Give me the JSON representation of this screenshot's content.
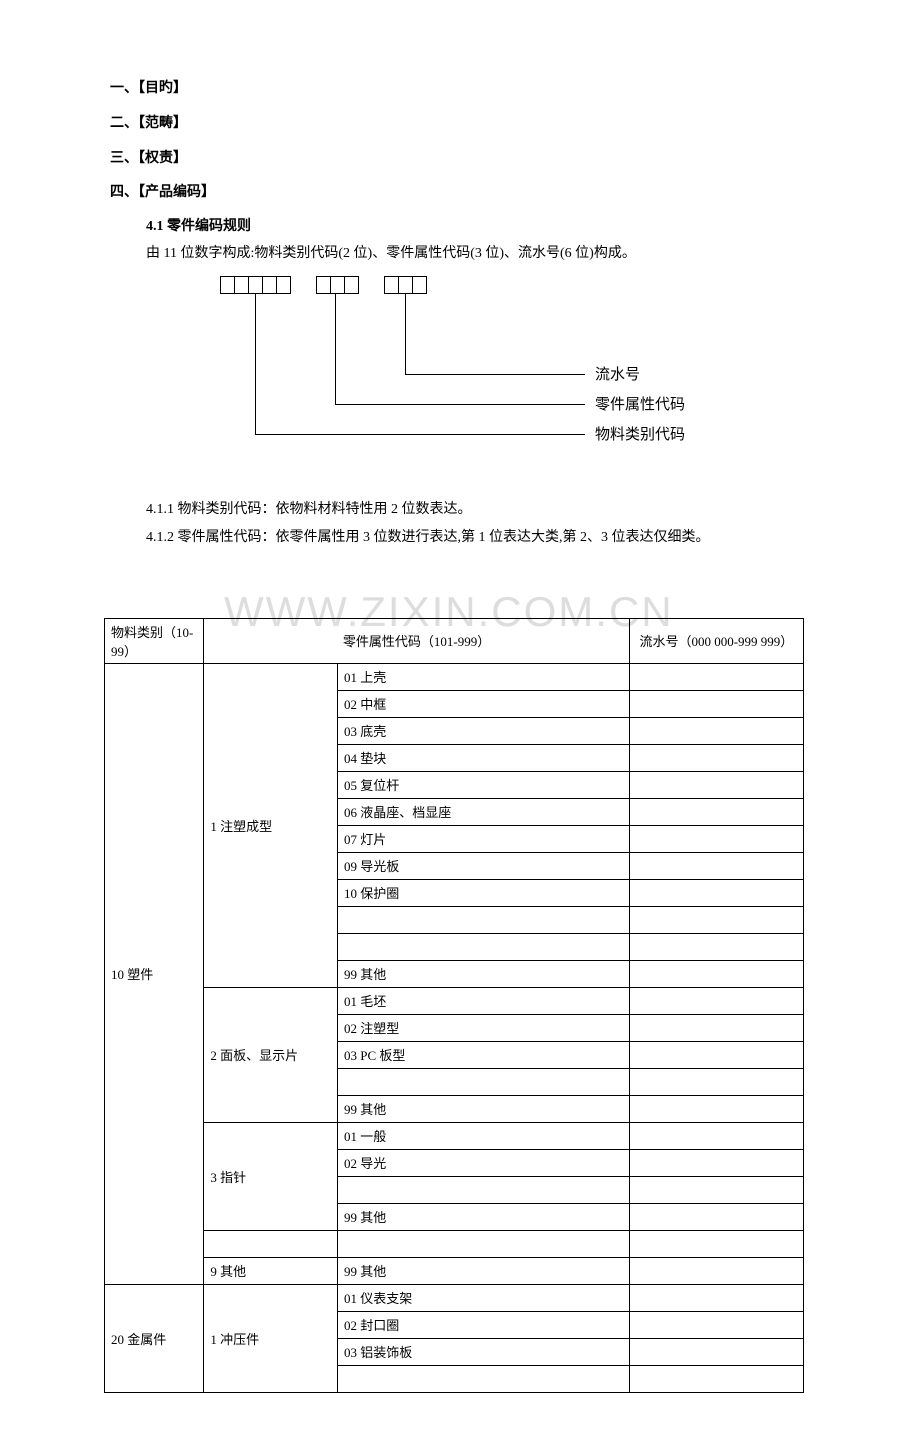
{
  "headings": {
    "h1": "一、【目旳】",
    "h2": "二、【范畴】",
    "h3": "三、【权责】",
    "h4": "四、【产品编码】"
  },
  "section41": {
    "title": "4.1 零件编码规则",
    "intro": "由 11 位数字构成:物料类别代码(2 位)、零件属性代码(3 位)、流水号(6 位)构成。",
    "label_serial": "流水号",
    "label_attr": "零件属性代码",
    "label_material": "物料类别代码",
    "p411": "4.1.1 物料类别代码：依物料材料特性用 2 位数表达。",
    "p412": "4.1.2 零件属性代码：依零件属性用 3 位数进行表达,第 1 位表达大类,第 2、3 位表达仅细类。"
  },
  "watermark": "WWW.ZIXIN.COM.CN",
  "table": {
    "header": {
      "colA": "物料类别（10-99）",
      "colBC": "零件属性代码（101-999）",
      "colD": "流水号（000 000-999 999）"
    },
    "groups": [
      {
        "material": "10 塑件",
        "subs": [
          {
            "name": "1 注塑成型",
            "items": [
              "01 上壳",
              "02 中框",
              "03 底壳",
              "04 垫块",
              "05 复位杆",
              "06 液晶座、档显座",
              "07 灯片",
              "09 导光板",
              "10 保护圈",
              "",
              "",
              "99 其他"
            ]
          },
          {
            "name": "2 面板、显示片",
            "items": [
              "01 毛坯",
              "02 注塑型",
              "03 PC 板型",
              "",
              "99 其他"
            ]
          },
          {
            "name": "3 指针",
            "items": [
              "01 一般",
              "02 导光",
              "",
              "99 其他"
            ]
          },
          {
            "name": "",
            "items": [
              ""
            ]
          },
          {
            "name": "9 其他",
            "items": [
              "99 其他"
            ]
          }
        ]
      },
      {
        "material": "20 金属件",
        "subs": [
          {
            "name": "1 冲压件",
            "items": [
              "01 仪表支架",
              "02 封口圈",
              "03 铝装饰板",
              ""
            ]
          }
        ]
      }
    ]
  }
}
